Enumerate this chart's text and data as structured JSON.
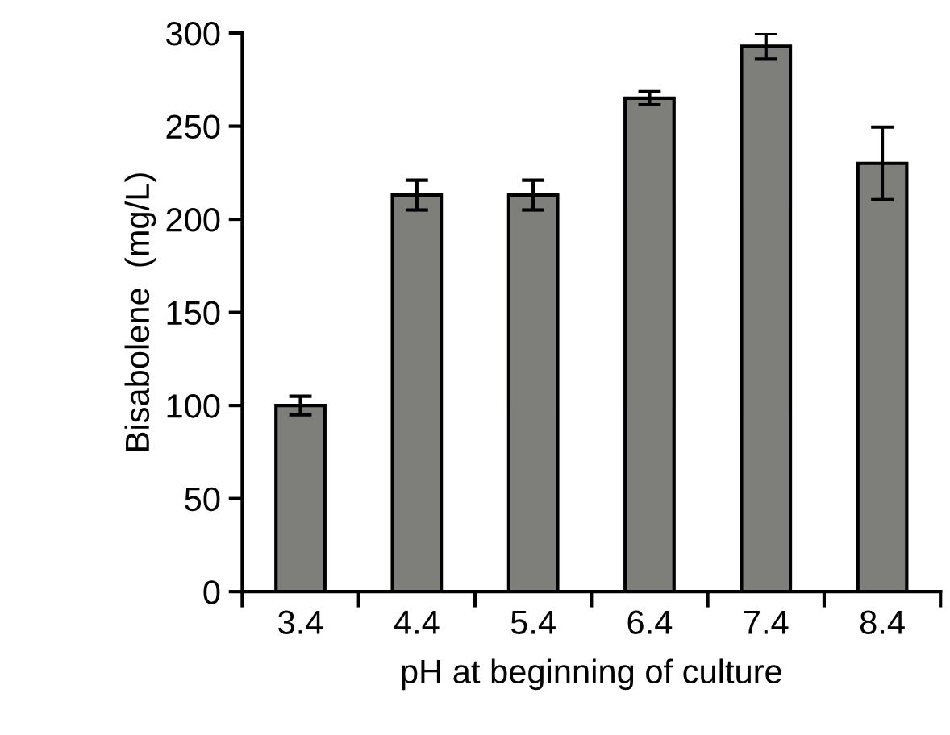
{
  "chart_data": {
    "type": "bar",
    "xlabel": "pH at beginning of culture",
    "ylabel": "Bisabolene  (mg/L)",
    "categories": [
      "3.4",
      "4.4",
      "5.4",
      "6.4",
      "7.4",
      "8.4"
    ],
    "values": [
      100,
      213,
      213,
      265,
      293,
      230
    ],
    "errors": [
      5,
      8,
      8,
      3.5,
      7,
      19.5
    ],
    "color": "#7e7f7a",
    "ylim": [
      0,
      300
    ],
    "yticks": [
      0,
      50,
      100,
      150,
      200,
      250,
      300
    ],
    "grid": false,
    "legend": false
  }
}
